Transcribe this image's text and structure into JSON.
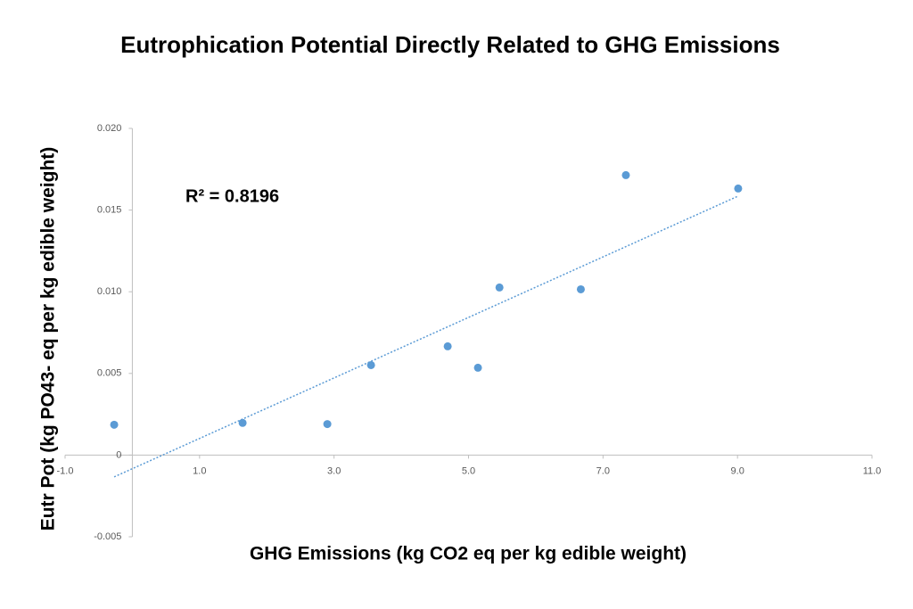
{
  "chart_data": {
    "type": "scatter",
    "title": "Eutrophication Potential Directly Related to GHG Emissions",
    "x_label": "GHG Emissions (kg CO2 eq per kg edible weight)",
    "y_label": "Eutr Pot (kg PO43- eq per kg edible weight)",
    "annotation": "R² = 0.8196",
    "trendline": true,
    "series": [
      {
        "color": "#5b9bd5",
        "x": [
          -0.27,
          1.64,
          2.9,
          3.55,
          4.69,
          5.14,
          5.46,
          6.67,
          7.34,
          9.01
        ],
        "values": [
          0.00186,
          0.00197,
          0.0019,
          0.00551,
          0.00666,
          0.00535,
          0.01026,
          0.01015,
          0.01714,
          0.01632
        ]
      }
    ],
    "xlim": [
      -1,
      11
    ],
    "xticks": [
      {
        "value": -1,
        "label": "-1.0"
      },
      {
        "value": 1,
        "label": "1.0"
      },
      {
        "value": 3,
        "label": "3.0"
      },
      {
        "value": 5,
        "label": "5.0"
      },
      {
        "value": 7,
        "label": "7.0"
      },
      {
        "value": 9,
        "label": "9.0"
      },
      {
        "value": 11,
        "label": "11.0"
      }
    ],
    "ylim": [
      -0.005,
      0.02
    ],
    "yticks": [
      -0.005,
      0,
      0.005,
      {
        "value": 0.01,
        "label": "0.010"
      },
      0.015,
      {
        "value": 0.02,
        "label": "0.020"
      }
    ]
  }
}
